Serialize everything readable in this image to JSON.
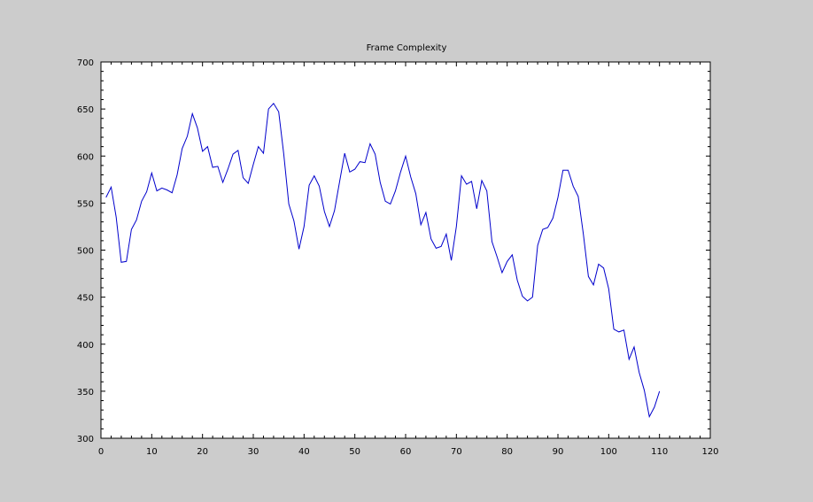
{
  "chart_data": {
    "type": "line",
    "title": "Frame Complexity",
    "xlabel": "",
    "ylabel": "",
    "xlim": [
      0,
      120
    ],
    "ylim": [
      300,
      700
    ],
    "xticks": [
      "0",
      "10",
      "20",
      "30",
      "40",
      "50",
      "60",
      "70",
      "80",
      "90",
      "100",
      "110",
      "120"
    ],
    "yticks": [
      "300",
      "350",
      "400",
      "450",
      "500",
      "550",
      "600",
      "650",
      "700"
    ],
    "grid": false,
    "line_color": "#0000cc",
    "series": [
      {
        "x": [
          1,
          2,
          3,
          4,
          5,
          6,
          7,
          8,
          9,
          10,
          11,
          12,
          13,
          14,
          15,
          16,
          17,
          18,
          19,
          20,
          21,
          22,
          23,
          24,
          25,
          26,
          27,
          28,
          29,
          30,
          31,
          32,
          33,
          34,
          35,
          36,
          37,
          38,
          39,
          40,
          41,
          42,
          43,
          44,
          45,
          46,
          47,
          48,
          49,
          50,
          51,
          52,
          53,
          54,
          55,
          56,
          57,
          58,
          59,
          60,
          61,
          62,
          63,
          64,
          65,
          66,
          67,
          68,
          69,
          70,
          71,
          72,
          73,
          74,
          75,
          76,
          77,
          78,
          79,
          80,
          81,
          82,
          83,
          84,
          85,
          86,
          87,
          88,
          89,
          90,
          91,
          92,
          93,
          94,
          95,
          96,
          97,
          98,
          99,
          100,
          101,
          102,
          103,
          104,
          105,
          106,
          107,
          108,
          109,
          110
        ],
        "values": [
          556,
          567,
          535,
          487,
          488,
          522,
          532,
          552,
          562,
          582,
          563,
          566,
          564,
          561,
          580,
          608,
          621,
          645,
          630,
          605,
          610,
          588,
          589,
          572,
          586,
          602,
          606,
          577,
          571,
          591,
          610,
          603,
          650,
          656,
          647,
          602,
          549,
          531,
          501,
          525,
          569,
          579,
          568,
          541,
          525,
          542,
          573,
          603,
          583,
          586,
          594,
          593,
          613,
          602,
          572,
          552,
          549,
          563,
          583,
          600,
          578,
          560,
          527,
          540,
          512,
          502,
          504,
          517,
          489,
          525,
          579,
          570,
          573,
          544,
          574,
          563,
          509,
          493,
          476,
          488,
          495,
          468,
          451,
          446,
          450,
          505,
          522,
          524,
          534,
          556,
          585,
          585,
          568,
          557,
          517,
          472,
          463,
          485,
          481,
          459,
          416,
          413,
          415,
          384,
          397,
          370,
          351,
          323,
          333,
          350
        ]
      }
    ]
  }
}
